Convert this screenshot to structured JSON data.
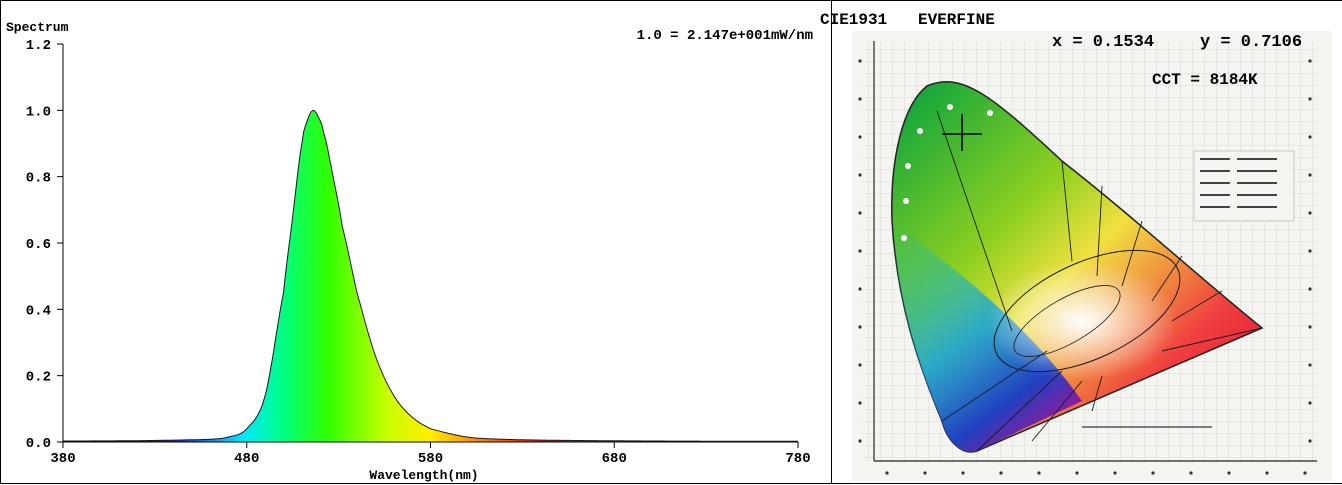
{
  "chart_data": [
    {
      "type": "area",
      "title": "Spectrum",
      "annotation": "1.0 = 2.147e+001mW/nm",
      "xlabel": "Wavelength(nm)",
      "ylabel": "",
      "xlim": [
        380,
        780
      ],
      "ylim": [
        0,
        1.2
      ],
      "x_ticks": [
        "380",
        "480",
        "580",
        "680",
        "780"
      ],
      "y_ticks": [
        "0.0",
        "0.2",
        "0.4",
        "0.6",
        "0.8",
        "1.0",
        "1.2"
      ],
      "peak_wavelength": 516,
      "x": [
        380,
        420,
        460,
        470,
        480,
        490,
        500,
        505,
        510,
        513,
        516,
        519,
        522,
        527,
        532,
        540,
        550,
        560,
        570,
        580,
        600,
        620,
        650,
        700,
        780
      ],
      "values": [
        0.003,
        0.004,
        0.008,
        0.015,
        0.04,
        0.14,
        0.45,
        0.68,
        0.9,
        0.97,
        1.0,
        0.98,
        0.93,
        0.8,
        0.65,
        0.45,
        0.26,
        0.14,
        0.075,
        0.04,
        0.015,
        0.008,
        0.005,
        0.003,
        0.002
      ],
      "grid": false
    },
    {
      "type": "scatter",
      "title": "CIE1931",
      "brand": "EVERFINE",
      "x_readout": "x = 0.1534",
      "y_readout": "y = 0.7106",
      "cct": "CCT = 8184K",
      "point": {
        "x": 0.1534,
        "y": 0.7106
      }
    }
  ],
  "colors": {
    "axis": "#000000",
    "background": "#ffffff"
  }
}
